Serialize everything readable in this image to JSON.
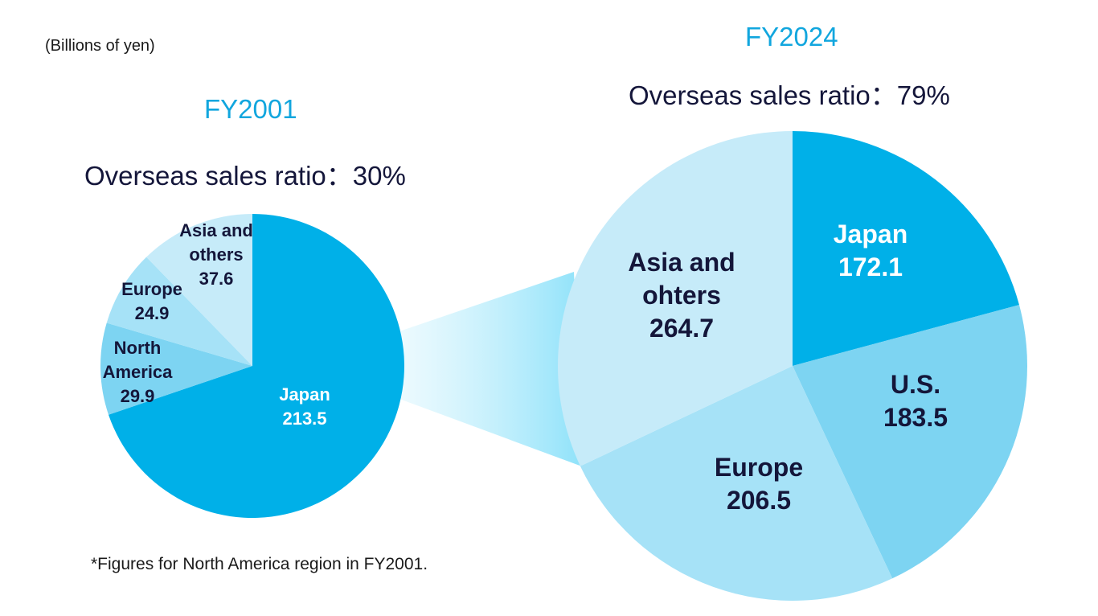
{
  "unit_note": "(Billions of yen)",
  "footnote": "*Figures for North America region in FY2001.",
  "colors": {
    "japan": "#00b0e8",
    "north_america": "#7dd4f2",
    "us": "#7dd4f2",
    "europe": "#a6e2f7",
    "asia_others": "#c6ebf9",
    "title_blue": "#11a6de",
    "dark_text": "#14163a",
    "connector": "#a9e7fb"
  },
  "chart_data": [
    {
      "type": "pie",
      "title": "FY2001",
      "subtitle": "Overseas sales ratio：30%",
      "slices": [
        {
          "label": "Japan",
          "value": 213.5,
          "color": "#00b0e8",
          "text_color": "#ffffff"
        },
        {
          "label": "North\nAmerica",
          "value": 29.9,
          "color": "#7dd4f2",
          "text_color": "#14163a"
        },
        {
          "label": "Europe",
          "value": 24.9,
          "color": "#a6e2f7",
          "text_color": "#14163a"
        },
        {
          "label": "Asia and\nothers",
          "value": 37.6,
          "color": "#c6ebf9",
          "text_color": "#14163a"
        }
      ]
    },
    {
      "type": "pie",
      "title": "FY2024",
      "subtitle": "Overseas sales ratio：79%",
      "slices": [
        {
          "label": "Japan",
          "value": 172.1,
          "color": "#00b0e8",
          "text_color": "#ffffff"
        },
        {
          "label": "U.S.",
          "value": 183.5,
          "color": "#7dd4f2",
          "text_color": "#14163a"
        },
        {
          "label": "Europe",
          "value": 206.5,
          "color": "#a6e2f7",
          "text_color": "#14163a"
        },
        {
          "label": "Asia and\nohters",
          "value": 264.7,
          "color": "#c6ebf9",
          "text_color": "#14163a"
        }
      ]
    }
  ]
}
